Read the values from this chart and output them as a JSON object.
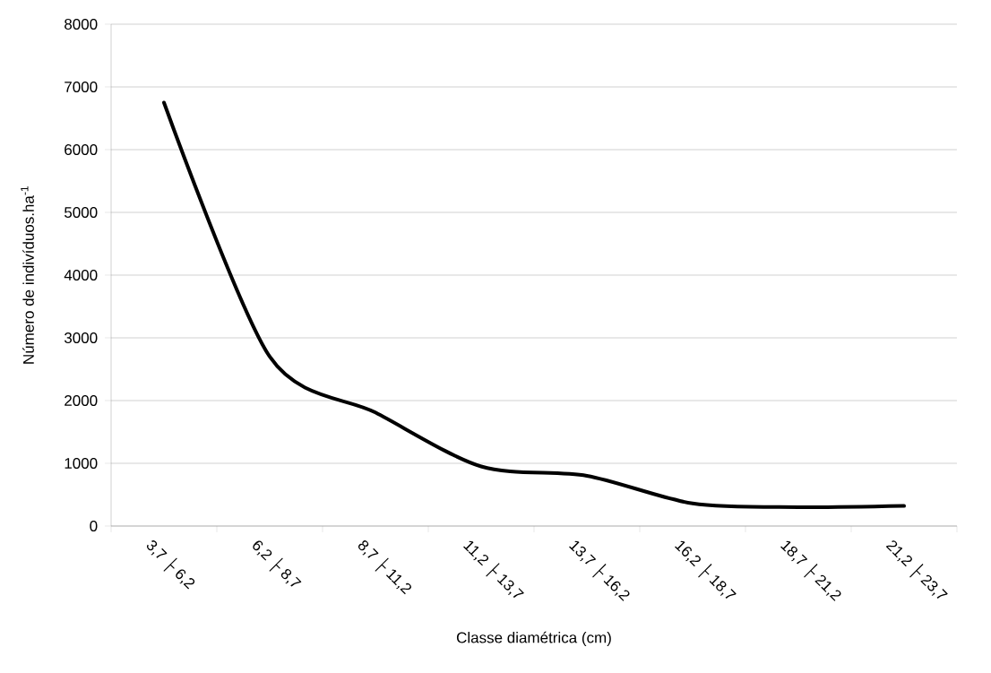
{
  "chart_data": {
    "type": "line",
    "xlabel": "Classe diamétrica (cm)",
    "ylabel": "Número de indivíduos.ha$^{-1}$",
    "categories": [
      "3,7 ├ 6,2",
      "6,2 ├ 8,7",
      "8,7 ├ 11,2",
      "11,2 ├ 13,7",
      "13,7 ├ 16,2",
      "16,2 ├ 18,7",
      "18,7 ├ 21,2",
      "21,2 ├ 23,7"
    ],
    "values": [
      6750,
      2700,
      1810,
      950,
      800,
      360,
      300,
      320
    ],
    "color": "#000000",
    "ylim": [
      0,
      8000
    ],
    "yticks": [
      0,
      1000,
      2000,
      3000,
      4000,
      5000,
      6000,
      7000,
      8000
    ],
    "grid": "y",
    "marker": "none",
    "line_style": "solid"
  }
}
